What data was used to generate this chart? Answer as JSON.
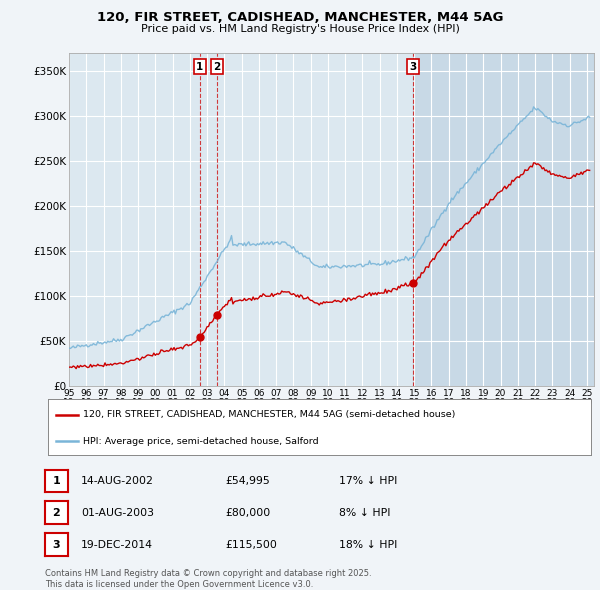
{
  "title1": "120, FIR STREET, CADISHEAD, MANCHESTER, M44 5AG",
  "title2": "Price paid vs. HM Land Registry's House Price Index (HPI)",
  "ylabel_ticks": [
    "£0",
    "£50K",
    "£100K",
    "£150K",
    "£200K",
    "£250K",
    "£300K",
    "£350K"
  ],
  "ytick_values": [
    0,
    50000,
    100000,
    150000,
    200000,
    250000,
    300000,
    350000
  ],
  "ylim": [
    0,
    370000
  ],
  "sale1_price": 54995,
  "sale2_price": 80000,
  "sale3_price": 115500,
  "legend_property": "120, FIR STREET, CADISHEAD, MANCHESTER, M44 5AG (semi-detached house)",
  "legend_hpi": "HPI: Average price, semi-detached house, Salford",
  "table_rows": [
    {
      "num": "1",
      "date": "14-AUG-2002",
      "price": "£54,995",
      "pct": "17% ↓ HPI"
    },
    {
      "num": "2",
      "date": "01-AUG-2003",
      "price": "£80,000",
      "pct": "8% ↓ HPI"
    },
    {
      "num": "3",
      "date": "19-DEC-2014",
      "price": "£115,500",
      "pct": "18% ↓ HPI"
    }
  ],
  "footnote1": "Contains HM Land Registry data © Crown copyright and database right 2025.",
  "footnote2": "This data is licensed under the Open Government Licence v3.0.",
  "hpi_color": "#7ab5d8",
  "property_color": "#cc0000",
  "bg_plot": "#dce8f0",
  "bg_figure": "#f0f4f8",
  "grid_color": "#ffffff",
  "dashed_line_color": "#cc0000",
  "shade_color": "#b8cede"
}
